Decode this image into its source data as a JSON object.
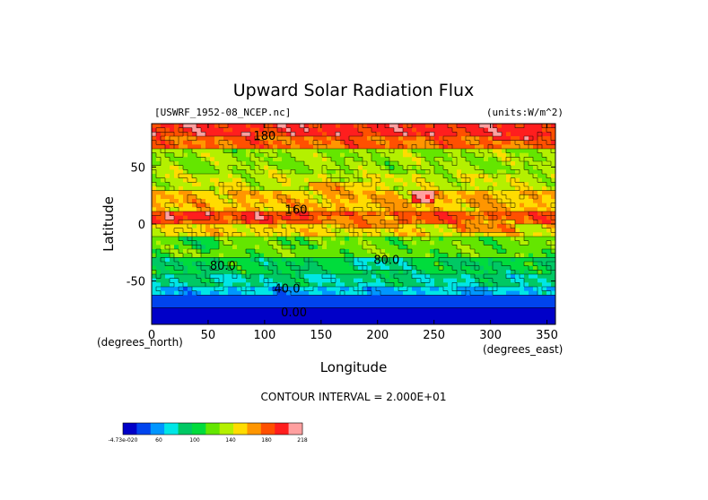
{
  "chart_data": {
    "type": "heatmap",
    "title": "Upward Solar Radiation Flux",
    "file_label": "[USWRF_1952-08_NCEP.nc]",
    "units_label": "(units:W/m^2)",
    "xlabel": "Longitude",
    "ylabel": "Latitude",
    "x_unit_label": "(degrees_east)",
    "y_unit_label": "(degrees_north)",
    "xlim": [
      0,
      357.5
    ],
    "ylim": [
      -88,
      88
    ],
    "x_ticks": [
      0,
      50,
      100,
      150,
      200,
      250,
      300,
      350
    ],
    "y_ticks": [
      -50,
      0,
      50
    ],
    "contour_interval_text": "CONTOUR INTERVAL = 2.000E+01",
    "contour_labels": [
      {
        "text": "180",
        "x": 100,
        "y": 74
      },
      {
        "text": "160",
        "x": 128,
        "y": 9
      },
      {
        "text": "80.0",
        "x": 63,
        "y": -40
      },
      {
        "text": "80.0",
        "x": 208,
        "y": -35
      },
      {
        "text": "40.0",
        "x": 120,
        "y": -60
      },
      {
        "text": "0.00",
        "x": 126,
        "y": -81
      }
    ],
    "colorbar": {
      "labels": [
        "-4.73e-020",
        "60",
        "100",
        "140",
        "180",
        "218"
      ],
      "colors": [
        "#0000c8",
        "#0044ee",
        "#0096ff",
        "#00e6e6",
        "#00c864",
        "#00dc3c",
        "#64e600",
        "#b4f000",
        "#ffdc00",
        "#ff9600",
        "#ff5000",
        "#ff1e1e",
        "#ffa0a0"
      ]
    },
    "latitude_bands": [
      {
        "lat": [
          78,
          88
        ],
        "value": 190
      },
      {
        "lat": [
          65,
          78
        ],
        "value": 170
      },
      {
        "lat": [
          45,
          65
        ],
        "value": 120
      },
      {
        "lat": [
          28,
          45
        ],
        "value": 130
      },
      {
        "lat": [
          12,
          28
        ],
        "value": 150
      },
      {
        "lat": [
          0,
          12
        ],
        "value": 175
      },
      {
        "lat": [
          -12,
          0
        ],
        "value": 140
      },
      {
        "lat": [
          -28,
          -12
        ],
        "value": 110
      },
      {
        "lat": [
          -45,
          -28
        ],
        "value": 85
      },
      {
        "lat": [
          -55,
          -45
        ],
        "value": 70
      },
      {
        "lat": [
          -63,
          -55
        ],
        "value": 50
      },
      {
        "lat": [
          -72,
          -63
        ],
        "value": 30
      },
      {
        "lat": [
          -82,
          -72
        ],
        "value": 10
      },
      {
        "lat": [
          -88,
          -82
        ],
        "value": 0
      }
    ],
    "patches": [
      {
        "lon": [
          300,
          340
        ],
        "lat": [
          73,
          83
        ],
        "value": 190
      },
      {
        "lon": [
          230,
          250
        ],
        "lat": [
          20,
          28
        ],
        "value": 205
      },
      {
        "lon": [
          10,
          50
        ],
        "lat": [
          3,
          12
        ],
        "value": 200
      },
      {
        "lon": [
          80,
          140
        ],
        "lat": [
          2,
          11
        ],
        "value": 190
      },
      {
        "lon": [
          160,
          220
        ],
        "lat": [
          -2,
          8
        ],
        "value": 160
      },
      {
        "lon": [
          140,
          200
        ],
        "lat": [
          20,
          35
        ],
        "value": 150
      },
      {
        "lon": [
          270,
          320
        ],
        "lat": [
          -8,
          5
        ],
        "value": 160
      },
      {
        "lon": [
          20,
          60
        ],
        "lat": [
          -22,
          -12
        ],
        "value": 95
      },
      {
        "lon": [
          180,
          230
        ],
        "lat": [
          -40,
          -28
        ],
        "value": 70
      }
    ]
  }
}
